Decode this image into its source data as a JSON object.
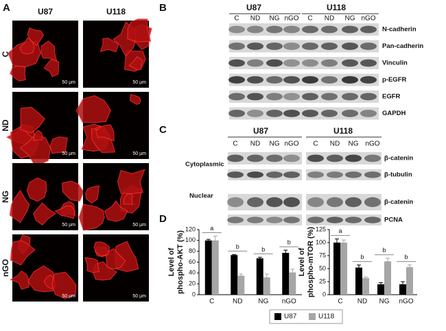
{
  "panel_labels": [
    "A",
    "B",
    "C",
    "D"
  ],
  "panel_a": {
    "columns": [
      "U87",
      "U118"
    ],
    "rows": [
      "C",
      "ND",
      "NG",
      "nGO"
    ],
    "scale_bar": "50 µm"
  },
  "panel_b": {
    "groups": [
      "U87",
      "U118"
    ],
    "lanes": [
      "C",
      "ND",
      "NG",
      "nGO"
    ],
    "proteins": [
      "N-cadherin",
      "Pan-cadherin",
      "Vinculin",
      "p-EGFR",
      "EGFR",
      "GAPDH"
    ]
  },
  "panel_c": {
    "groups": [
      "U87",
      "U118"
    ],
    "lanes": [
      "C",
      "ND",
      "NG",
      "nGO"
    ],
    "fractions": [
      "Cytoplasmic",
      "Nuclear"
    ],
    "proteins": [
      "β-catenin",
      "β-tubulin",
      "β-catenin",
      "PCNA"
    ]
  },
  "chart_data": [
    {
      "type": "bar",
      "ylabel": [
        "Level of",
        "phospho-AKT (%)"
      ],
      "categories": [
        "C",
        "ND",
        "NG",
        "nGO"
      ],
      "ylim": [
        0,
        120
      ],
      "yticks": [
        0,
        20,
        40,
        60,
        80,
        100,
        120
      ],
      "sig_labels": [
        "a",
        "b",
        "b",
        "b"
      ],
      "series": [
        {
          "name": "U87",
          "color": "#000000",
          "values": [
            100,
            73,
            67,
            77
          ],
          "errors": [
            2,
            1,
            2,
            5
          ]
        },
        {
          "name": "U118",
          "color": "#a6a6a6",
          "values": [
            100,
            35,
            32,
            41
          ],
          "errors": [
            8,
            3,
            6,
            6
          ]
        }
      ]
    },
    {
      "type": "bar",
      "ylabel": [
        "Level of",
        "phospho-mTOR (%)"
      ],
      "categories": [
        "C",
        "ND",
        "NG",
        "nGO"
      ],
      "ylim": [
        0,
        125
      ],
      "yticks": [
        0,
        25,
        50,
        75,
        100,
        125
      ],
      "sig_labels": [
        "a",
        "b",
        "b",
        "b"
      ],
      "series": [
        {
          "color": "#000000",
          "values": [
            100,
            52,
            20,
            20
          ],
          "errors": [
            7,
            5,
            3,
            5
          ]
        },
        {
          "color": "#a6a6a6",
          "values": [
            100,
            32,
            64,
            53
          ],
          "errors": [
            5,
            2,
            6,
            4
          ]
        }
      ]
    }
  ]
}
